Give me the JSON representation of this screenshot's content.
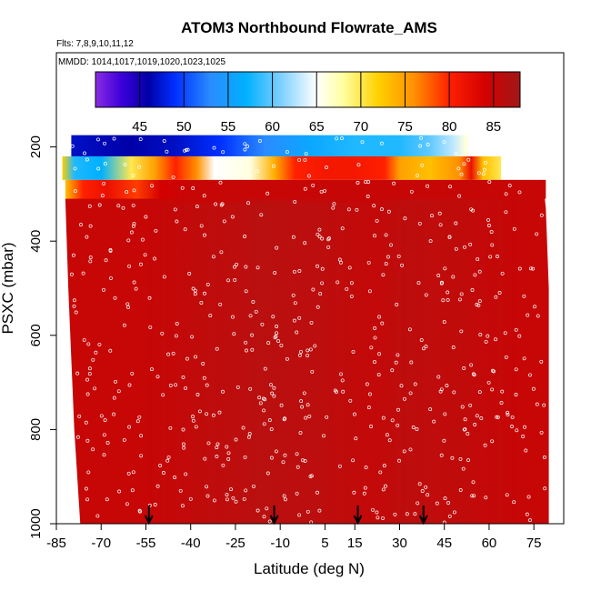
{
  "chart_data": {
    "type": "heatmap",
    "title": "ATOM3 Northbound Flowrate_AMS",
    "flights_label": "Flts: 7,8,9,10,11,12",
    "dates_label": "MMDD: 1014,1017,1019,1020,1023,1025",
    "xlabel": "Latitude (deg N)",
    "ylabel": "PSXC (mbar)",
    "xlim": [
      -85,
      85
    ],
    "ylim": [
      1000,
      0
    ],
    "x_ticks": [
      "-85",
      "-70",
      "-55",
      "-40",
      "-25",
      "-10",
      "5",
      "15",
      "30",
      "45",
      "60",
      "75"
    ],
    "x_tick_values": [
      -85,
      -70,
      -55,
      -40,
      -25,
      -10,
      5,
      15,
      30,
      45,
      60,
      75
    ],
    "y_ticks": [
      "200",
      "400",
      "600",
      "800",
      "1000"
    ],
    "y_tick_values": [
      200,
      400,
      600,
      800,
      1000
    ],
    "colorbar": {
      "min": 40,
      "max": 88,
      "tick_labels": [
        "45",
        "50",
        "55",
        "60",
        "65",
        "70",
        "75",
        "80",
        "85"
      ],
      "tick_values": [
        45,
        50,
        55,
        60,
        65,
        70,
        75,
        80,
        85
      ],
      "colors": [
        {
          "v": 40,
          "c": "#8a2be2"
        },
        {
          "v": 43,
          "c": "#3a00d8"
        },
        {
          "v": 46,
          "c": "#0000a8"
        },
        {
          "v": 49,
          "c": "#0030ff"
        },
        {
          "v": 53,
          "c": "#2a8cff"
        },
        {
          "v": 57,
          "c": "#00b0ff"
        },
        {
          "v": 61,
          "c": "#7fd0ff"
        },
        {
          "v": 65,
          "c": "#ffffff"
        },
        {
          "v": 68,
          "c": "#ffffa0"
        },
        {
          "v": 72,
          "c": "#ffd000"
        },
        {
          "v": 76,
          "c": "#ff9000"
        },
        {
          "v": 80,
          "c": "#ff2000"
        },
        {
          "v": 84,
          "c": "#d40000"
        },
        {
          "v": 88,
          "c": "#a01818"
        }
      ]
    },
    "field_value_main": 85,
    "field_value_core": 87,
    "upper_layers": [
      {
        "p_top": 175,
        "p_bottom": 220,
        "lat_start": -80,
        "lat_end": 53,
        "profile": [
          [
            -80,
            47
          ],
          [
            -60,
            46
          ],
          [
            -45,
            47
          ],
          [
            -30,
            49
          ],
          [
            -15,
            53
          ],
          [
            0,
            56
          ],
          [
            15,
            58
          ],
          [
            30,
            58
          ],
          [
            40,
            60
          ],
          [
            48,
            63
          ],
          [
            52,
            66
          ]
        ]
      },
      {
        "p_top": 220,
        "p_bottom": 270,
        "lat_start": -83,
        "lat_end": 64,
        "profile": [
          [
            -83,
            72
          ],
          [
            -79,
            58
          ],
          [
            -70,
            57
          ],
          [
            -60,
            70
          ],
          [
            -52,
            75
          ],
          [
            -45,
            80
          ],
          [
            -38,
            76
          ],
          [
            -32,
            65
          ],
          [
            -20,
            66
          ],
          [
            -12,
            74
          ],
          [
            -5,
            80
          ],
          [
            5,
            81
          ],
          [
            15,
            81
          ],
          [
            25,
            80
          ],
          [
            30,
            75
          ],
          [
            40,
            73
          ],
          [
            50,
            76
          ],
          [
            54,
            82
          ],
          [
            58,
            73
          ],
          [
            64,
            70
          ]
        ]
      },
      {
        "p_top": 270,
        "p_bottom": 310,
        "lat_start": -82,
        "lat_end": 79,
        "profile": [
          [
            -82,
            73
          ],
          [
            -76,
            80
          ],
          [
            -68,
            82
          ],
          [
            -58,
            79
          ],
          [
            -50,
            84
          ],
          [
            -40,
            85
          ],
          [
            79,
            85
          ]
        ]
      }
    ],
    "main_field": {
      "p_top": 310,
      "p_bottom": 1000,
      "left_edge": [
        [
          310,
          -82
        ],
        [
          500,
          -81
        ],
        [
          800,
          -79
        ],
        [
          1000,
          -77
        ]
      ],
      "right_edge": [
        [
          270,
          78
        ],
        [
          330,
          79
        ],
        [
          500,
          80
        ],
        [
          1000,
          80
        ]
      ]
    },
    "arrows_lat": [
      -54,
      -12,
      16,
      38
    ]
  }
}
